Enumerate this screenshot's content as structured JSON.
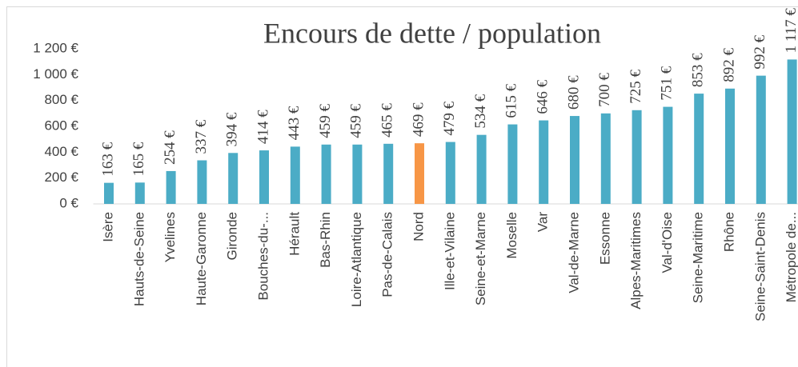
{
  "chart_data": {
    "type": "bar",
    "title": "Encours de dette / population",
    "categories": [
      "Isère",
      "Hauts-de-Seine",
      "Yvelines",
      "Haute-Garonne",
      "Gironde",
      "Bouches-du-...",
      "Hérault",
      "Bas-Rhin",
      "Loire-Atlantique",
      "Pas-de-Calais",
      "Nord",
      "Ille-et-Vilaine",
      "Seine-et-Marne",
      "Moselle",
      "Var",
      "Val-de-Marne",
      "Essonne",
      "Alpes-Maritimes",
      "Val-d'Oise",
      "Seine-Maritime",
      "Rhône",
      "Seine-Saint-Denis",
      "Métropole de..."
    ],
    "values": [
      163,
      165,
      254,
      337,
      394,
      414,
      443,
      459,
      459,
      465,
      469,
      479,
      534,
      615,
      646,
      680,
      700,
      725,
      751,
      853,
      892,
      992,
      1117
    ],
    "value_labels": [
      "163 €",
      "165 €",
      "254 €",
      "337 €",
      "394 €",
      "414 €",
      "443 €",
      "459 €",
      "459 €",
      "465 €",
      "469 €",
      "479 €",
      "534 €",
      "615 €",
      "646 €",
      "680 €",
      "700 €",
      "725 €",
      "751 €",
      "853 €",
      "892 €",
      "992 €",
      "1 117 €"
    ],
    "colors": [
      "#4bacc6",
      "#4bacc6",
      "#4bacc6",
      "#4bacc6",
      "#4bacc6",
      "#4bacc6",
      "#4bacc6",
      "#4bacc6",
      "#4bacc6",
      "#4bacc6",
      "#f79646",
      "#4bacc6",
      "#4bacc6",
      "#4bacc6",
      "#4bacc6",
      "#4bacc6",
      "#4bacc6",
      "#4bacc6",
      "#4bacc6",
      "#4bacc6",
      "#4bacc6",
      "#4bacc6",
      "#4bacc6"
    ],
    "ylim": [
      0,
      1200
    ],
    "yticks": [
      {
        "value": 0,
        "label": "0 €"
      },
      {
        "value": 200,
        "label": "200 €"
      },
      {
        "value": 400,
        "label": "400 €"
      },
      {
        "value": 600,
        "label": "600 €"
      },
      {
        "value": 800,
        "label": "800 €"
      },
      {
        "value": 1000,
        "label": "1 000 €"
      },
      {
        "value": 1200,
        "label": "1 200 €"
      }
    ],
    "grid": false
  }
}
